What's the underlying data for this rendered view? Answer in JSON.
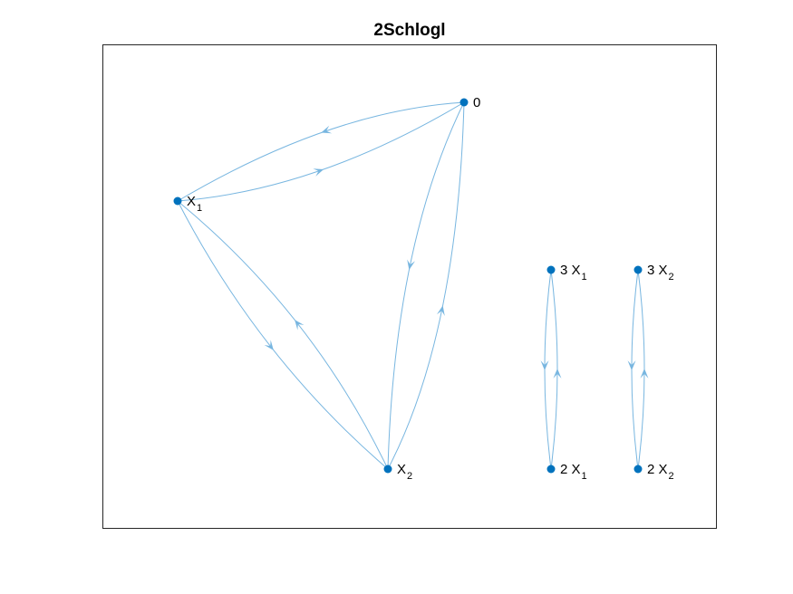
{
  "title": "2Schlogl",
  "colors": {
    "node": "#0072bd",
    "edge": "#78b6e0",
    "axes_frame": "#262626",
    "background": "#ffffff"
  },
  "graph": {
    "layout": "directed-multigraph",
    "nodes": [
      {
        "id": "zero",
        "label": "0",
        "subscript": ""
      },
      {
        "id": "x1",
        "label": "X",
        "subscript": "1"
      },
      {
        "id": "x2",
        "label": "X",
        "subscript": "2"
      },
      {
        "id": "three_x1",
        "label": "3 X",
        "subscript": "1"
      },
      {
        "id": "two_x1",
        "label": "2 X",
        "subscript": "1"
      },
      {
        "id": "three_x2",
        "label": "3 X",
        "subscript": "2"
      },
      {
        "id": "two_x2",
        "label": "2 X",
        "subscript": "2"
      }
    ],
    "edges": [
      {
        "from": "zero",
        "to": "x1"
      },
      {
        "from": "x1",
        "to": "zero"
      },
      {
        "from": "zero",
        "to": "x2"
      },
      {
        "from": "x2",
        "to": "zero"
      },
      {
        "from": "x1",
        "to": "x2"
      },
      {
        "from": "x2",
        "to": "x1"
      },
      {
        "from": "three_x1",
        "to": "two_x1"
      },
      {
        "from": "two_x1",
        "to": "three_x1"
      },
      {
        "from": "three_x2",
        "to": "two_x2"
      },
      {
        "from": "two_x2",
        "to": "three_x2"
      }
    ]
  }
}
